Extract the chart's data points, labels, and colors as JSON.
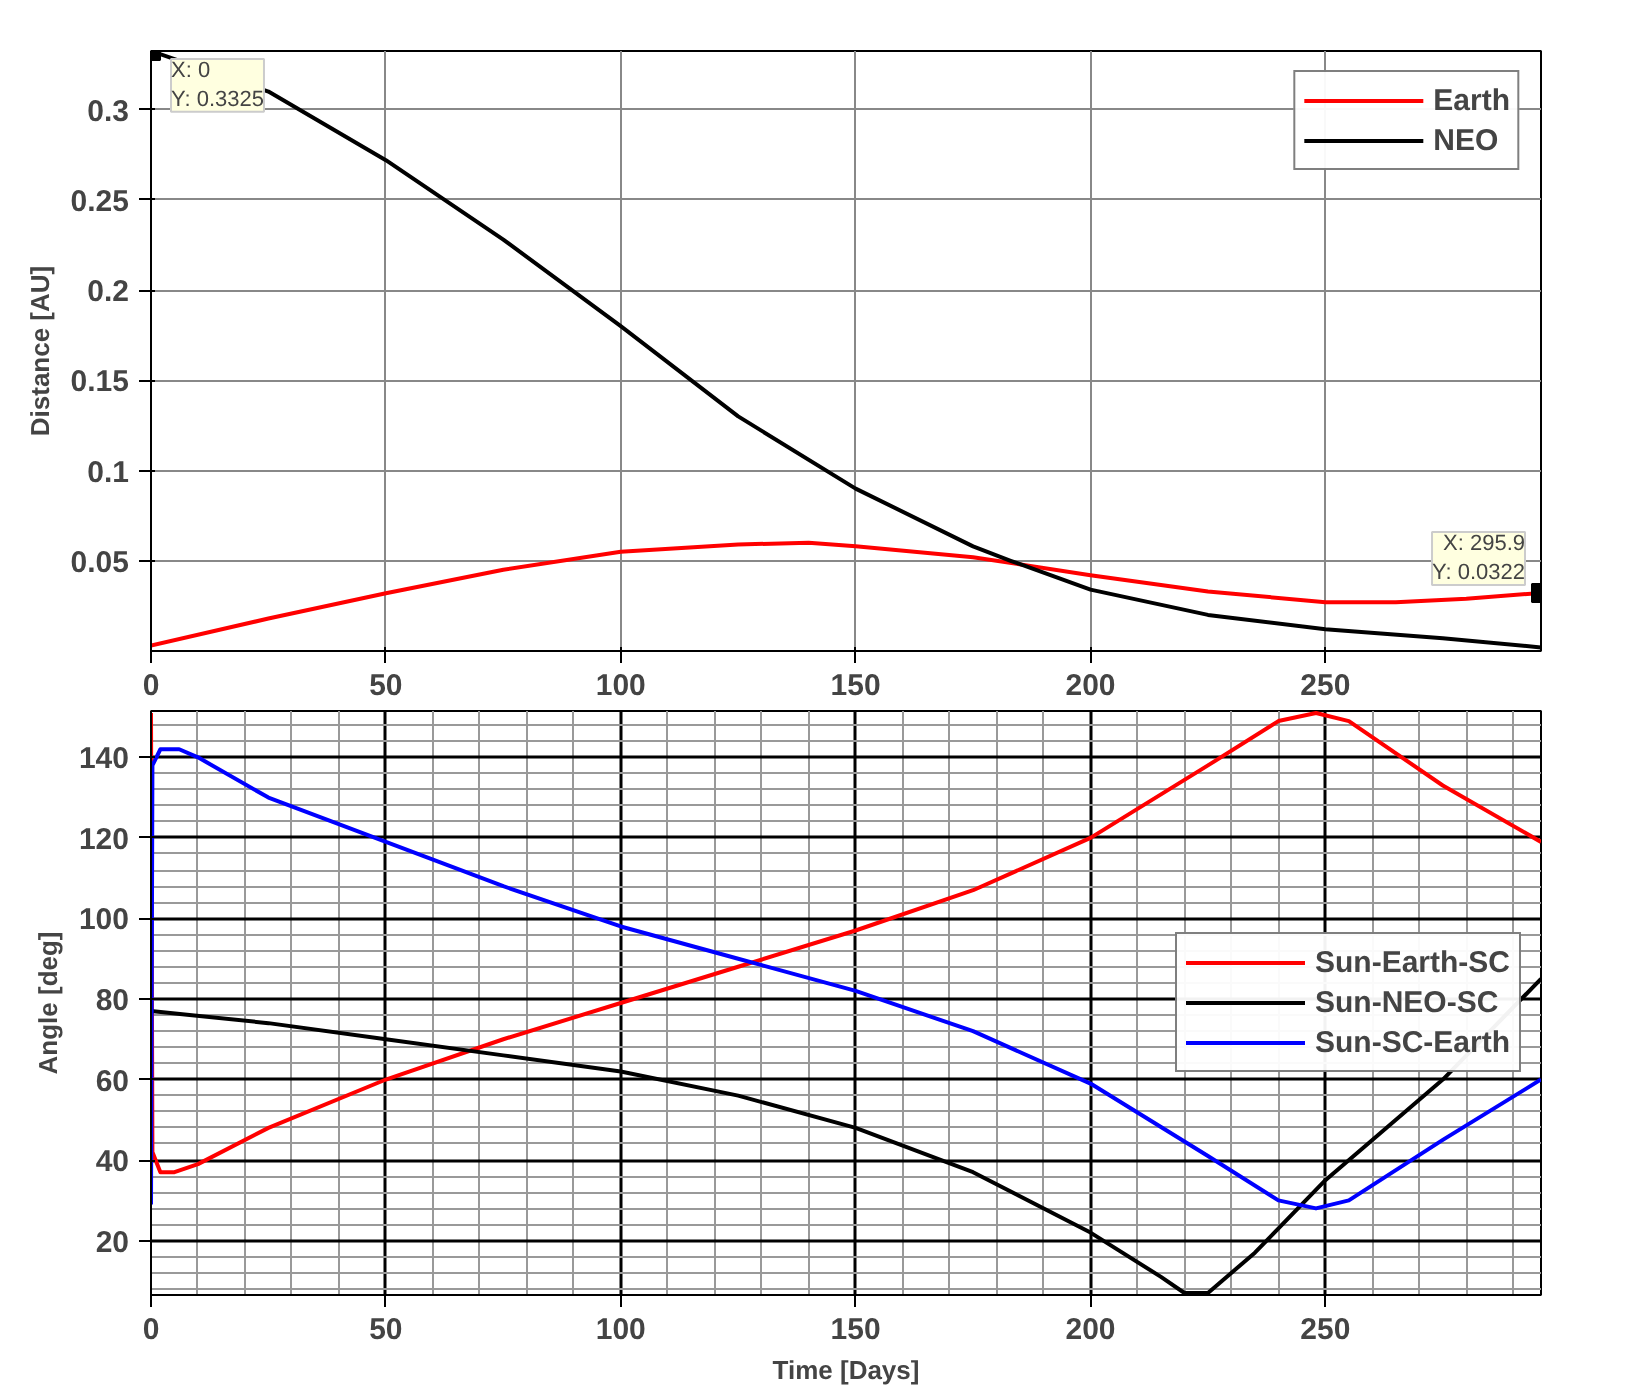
{
  "chart_data": [
    {
      "type": "line",
      "ylabel": "Distance [AU]",
      "xlim": [
        0,
        295.9
      ],
      "ylim": [
        0,
        0.3325
      ],
      "xticks": [
        0,
        50,
        100,
        150,
        200,
        250
      ],
      "yticks": [
        0.05,
        0.1,
        0.15,
        0.2,
        0.25,
        0.3
      ],
      "grid": true,
      "legend": "top right",
      "line_style": "solid",
      "series": [
        {
          "name": "Earth",
          "color": "#ff0000",
          "x": [
            0,
            25,
            50,
            75,
            100,
            125,
            140,
            150,
            175,
            200,
            225,
            250,
            265,
            280,
            295.9
          ],
          "values": [
            0.003,
            0.018,
            0.032,
            0.045,
            0.055,
            0.059,
            0.06,
            0.058,
            0.052,
            0.042,
            0.033,
            0.027,
            0.027,
            0.029,
            0.0322
          ]
        },
        {
          "name": "NEO",
          "color": "#000000",
          "x": [
            0,
            25,
            50,
            75,
            100,
            125,
            150,
            175,
            183,
            200,
            225,
            250,
            275,
            295.9
          ],
          "values": [
            0.3325,
            0.31,
            0.272,
            0.228,
            0.18,
            0.13,
            0.09,
            0.058,
            0.05,
            0.034,
            0.02,
            0.012,
            0.007,
            0.002
          ]
        }
      ],
      "annotations": [
        {
          "text": "X: 0\nY: 0.3325",
          "x": 0,
          "y": 0.3325
        },
        {
          "text": "X: 295.9\nY: 0.0322",
          "x": 295.9,
          "y": 0.0322
        }
      ]
    },
    {
      "type": "line",
      "xlabel": "Time [Days]",
      "ylabel": "Angle [deg]",
      "xlim": [
        0,
        295.9
      ],
      "ylim": [
        6.5,
        151.5
      ],
      "xticks": [
        0,
        50,
        100,
        150,
        200,
        250
      ],
      "yticks": [
        20,
        40,
        60,
        80,
        100,
        120,
        140
      ],
      "grid": true,
      "legend": "right",
      "line_style": "solid",
      "series": [
        {
          "name": "Sun-Earth-SC",
          "color": "#ff0000",
          "x": [
            0,
            0.3,
            2,
            5,
            10,
            25,
            50,
            75,
            100,
            125,
            150,
            175,
            200,
            225,
            240,
            248,
            255,
            275,
            295.9
          ],
          "values": [
            151,
            42,
            37,
            37,
            39,
            48,
            60,
            70,
            79,
            88,
            97,
            107,
            120,
            138,
            149,
            151,
            149,
            133,
            119
          ]
        },
        {
          "name": "Sun-NEO-SC",
          "color": "#000000",
          "x": [
            0,
            25,
            50,
            75,
            100,
            125,
            150,
            175,
            200,
            215,
            220,
            225,
            235,
            250,
            275,
            295.9
          ],
          "values": [
            77,
            74,
            70,
            66,
            62,
            56,
            48,
            37,
            22,
            11,
            7,
            7,
            17,
            35,
            60,
            85
          ]
        },
        {
          "name": "Sun-SC-Earth",
          "color": "#0000ff",
          "x": [
            0,
            0.3,
            2,
            6,
            10,
            25,
            50,
            75,
            100,
            125,
            150,
            175,
            200,
            225,
            240,
            248,
            255,
            275,
            295.9
          ],
          "values": [
            29,
            138,
            142,
            142,
            140,
            130,
            119,
            108,
            98,
            90,
            82,
            72,
            59,
            41,
            30,
            28,
            30,
            45,
            60
          ]
        }
      ]
    }
  ]
}
